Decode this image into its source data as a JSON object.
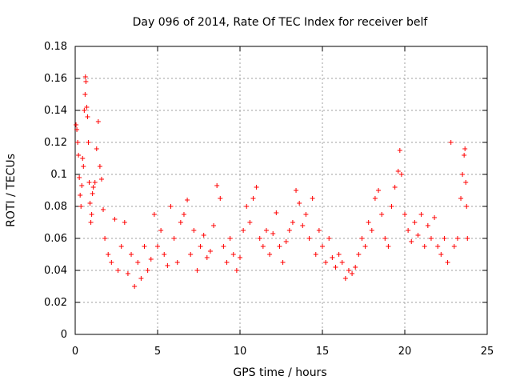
{
  "chart_data": {
    "type": "scatter",
    "title": "Day 096 of 2014, Rate Of TEC Index for receiver belf",
    "xlabel": "GPS time / hours",
    "ylabel": "ROTI / TECUs",
    "xlim": [
      0,
      25
    ],
    "ylim": [
      0,
      0.18
    ],
    "x_ticks": [
      0,
      5,
      10,
      15,
      20,
      25
    ],
    "x_tick_labels": [
      "0",
      "5",
      "10",
      "15",
      "20",
      "25"
    ],
    "y_ticks": [
      0,
      0.02,
      0.04,
      0.06,
      0.08,
      0.1,
      0.12,
      0.14,
      0.16,
      0.18
    ],
    "y_tick_labels": [
      "0",
      "0.02",
      "0.04",
      "0.06",
      "0.08",
      "0.1",
      "0.12",
      "0.14",
      "0.16",
      "0.18"
    ],
    "grid": true,
    "marker": "+",
    "color": "#ff0000",
    "series": [
      {
        "name": "ROTI",
        "points": [
          [
            0.05,
            0.131
          ],
          [
            0.1,
            0.128
          ],
          [
            0.15,
            0.12
          ],
          [
            0.2,
            0.112
          ],
          [
            0.25,
            0.098
          ],
          [
            0.3,
            0.087
          ],
          [
            0.35,
            0.08
          ],
          [
            0.4,
            0.093
          ],
          [
            0.45,
            0.11
          ],
          [
            0.5,
            0.105
          ],
          [
            0.55,
            0.14
          ],
          [
            0.6,
            0.15
          ],
          [
            0.62,
            0.161
          ],
          [
            0.65,
            0.158
          ],
          [
            0.7,
            0.142
          ],
          [
            0.75,
            0.136
          ],
          [
            0.8,
            0.12
          ],
          [
            0.85,
            0.095
          ],
          [
            0.9,
            0.082
          ],
          [
            0.95,
            0.07
          ],
          [
            1.0,
            0.075
          ],
          [
            1.05,
            0.088
          ],
          [
            1.1,
            0.092
          ],
          [
            1.2,
            0.095
          ],
          [
            1.3,
            0.116
          ],
          [
            1.4,
            0.133
          ],
          [
            1.5,
            0.105
          ],
          [
            1.6,
            0.097
          ],
          [
            1.7,
            0.078
          ],
          [
            1.8,
            0.06
          ],
          [
            2.0,
            0.05
          ],
          [
            2.2,
            0.045
          ],
          [
            2.4,
            0.072
          ],
          [
            2.6,
            0.04
          ],
          [
            2.8,
            0.055
          ],
          [
            3.0,
            0.07
          ],
          [
            3.2,
            0.038
          ],
          [
            3.4,
            0.05
          ],
          [
            3.6,
            0.03
          ],
          [
            3.8,
            0.045
          ],
          [
            4.0,
            0.035
          ],
          [
            4.2,
            0.055
          ],
          [
            4.4,
            0.04
          ],
          [
            4.6,
            0.047
          ],
          [
            4.8,
            0.075
          ],
          [
            5.0,
            0.055
          ],
          [
            5.2,
            0.065
          ],
          [
            5.4,
            0.05
          ],
          [
            5.6,
            0.043
          ],
          [
            5.8,
            0.08
          ],
          [
            6.0,
            0.06
          ],
          [
            6.2,
            0.045
          ],
          [
            6.4,
            0.07
          ],
          [
            6.6,
            0.075
          ],
          [
            6.8,
            0.084
          ],
          [
            7.0,
            0.05
          ],
          [
            7.2,
            0.065
          ],
          [
            7.4,
            0.04
          ],
          [
            7.6,
            0.055
          ],
          [
            7.8,
            0.062
          ],
          [
            8.0,
            0.048
          ],
          [
            8.2,
            0.052
          ],
          [
            8.4,
            0.068
          ],
          [
            8.6,
            0.093
          ],
          [
            8.8,
            0.085
          ],
          [
            9.0,
            0.055
          ],
          [
            9.2,
            0.045
          ],
          [
            9.4,
            0.06
          ],
          [
            9.6,
            0.05
          ],
          [
            9.8,
            0.04
          ],
          [
            10.0,
            0.048
          ],
          [
            10.2,
            0.065
          ],
          [
            10.4,
            0.08
          ],
          [
            10.6,
            0.07
          ],
          [
            10.8,
            0.085
          ],
          [
            11.0,
            0.092
          ],
          [
            11.2,
            0.06
          ],
          [
            11.4,
            0.055
          ],
          [
            11.6,
            0.065
          ],
          [
            11.8,
            0.05
          ],
          [
            12.0,
            0.063
          ],
          [
            12.2,
            0.076
          ],
          [
            12.4,
            0.055
          ],
          [
            12.6,
            0.045
          ],
          [
            12.8,
            0.058
          ],
          [
            13.0,
            0.065
          ],
          [
            13.2,
            0.07
          ],
          [
            13.4,
            0.09
          ],
          [
            13.6,
            0.082
          ],
          [
            13.8,
            0.068
          ],
          [
            14.0,
            0.075
          ],
          [
            14.2,
            0.06
          ],
          [
            14.4,
            0.085
          ],
          [
            14.6,
            0.05
          ],
          [
            14.8,
            0.065
          ],
          [
            15.0,
            0.055
          ],
          [
            15.2,
            0.045
          ],
          [
            15.4,
            0.06
          ],
          [
            15.6,
            0.048
          ],
          [
            15.8,
            0.042
          ],
          [
            16.0,
            0.05
          ],
          [
            16.2,
            0.045
          ],
          [
            16.4,
            0.035
          ],
          [
            16.6,
            0.04
          ],
          [
            16.8,
            0.038
          ],
          [
            17.0,
            0.042
          ],
          [
            17.2,
            0.05
          ],
          [
            17.4,
            0.06
          ],
          [
            17.6,
            0.055
          ],
          [
            17.8,
            0.07
          ],
          [
            18.0,
            0.065
          ],
          [
            18.2,
            0.085
          ],
          [
            18.4,
            0.09
          ],
          [
            18.6,
            0.075
          ],
          [
            18.8,
            0.06
          ],
          [
            19.0,
            0.055
          ],
          [
            19.2,
            0.08
          ],
          [
            19.4,
            0.092
          ],
          [
            19.6,
            0.102
          ],
          [
            19.7,
            0.115
          ],
          [
            19.8,
            0.1
          ],
          [
            20.0,
            0.075
          ],
          [
            20.2,
            0.065
          ],
          [
            20.4,
            0.058
          ],
          [
            20.6,
            0.07
          ],
          [
            20.8,
            0.062
          ],
          [
            21.0,
            0.075
          ],
          [
            21.2,
            0.055
          ],
          [
            21.4,
            0.068
          ],
          [
            21.6,
            0.06
          ],
          [
            21.8,
            0.073
          ],
          [
            22.0,
            0.055
          ],
          [
            22.2,
            0.05
          ],
          [
            22.4,
            0.06
          ],
          [
            22.6,
            0.045
          ],
          [
            22.8,
            0.12
          ],
          [
            23.0,
            0.055
          ],
          [
            23.2,
            0.06
          ],
          [
            23.4,
            0.085
          ],
          [
            23.5,
            0.1
          ],
          [
            23.6,
            0.112
          ],
          [
            23.65,
            0.116
          ],
          [
            23.7,
            0.095
          ],
          [
            23.75,
            0.08
          ],
          [
            23.8,
            0.06
          ]
        ]
      }
    ]
  }
}
